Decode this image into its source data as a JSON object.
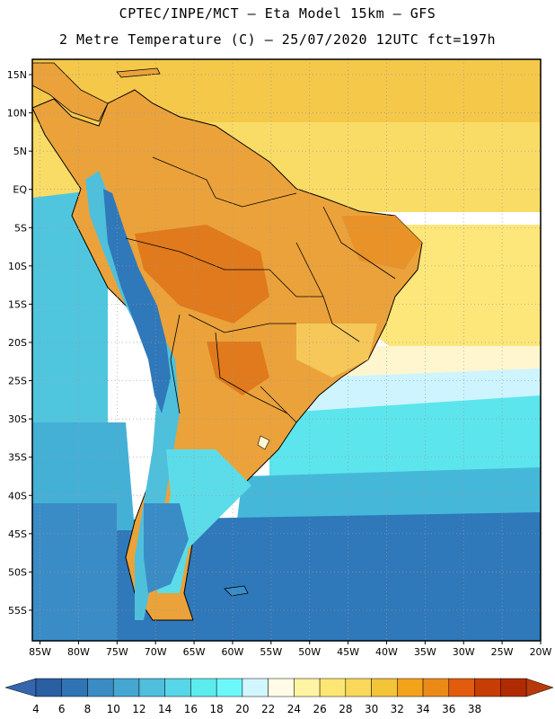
{
  "header": {
    "line1": "CPTEC/INPE/MCT –  Eta Model 15km – GFS",
    "line2": "2 Metre Temperature (C) – 25/07/2020 12UTC fct=197h"
  },
  "map": {
    "lon_range": [
      -86,
      -20
    ],
    "lat_range": [
      -59,
      17
    ],
    "lat_ticks": [
      {
        "lat": 15,
        "label": "15N"
      },
      {
        "lat": 10,
        "label": "10N"
      },
      {
        "lat": 5,
        "label": "5N"
      },
      {
        "lat": 0,
        "label": "EQ"
      },
      {
        "lat": -5,
        "label": "5S"
      },
      {
        "lat": -10,
        "label": "10S"
      },
      {
        "lat": -15,
        "label": "15S"
      },
      {
        "lat": -20,
        "label": "20S"
      },
      {
        "lat": -25,
        "label": "25S"
      },
      {
        "lat": -30,
        "label": "30S"
      },
      {
        "lat": -35,
        "label": "35S"
      },
      {
        "lat": -40,
        "label": "40S"
      },
      {
        "lat": -45,
        "label": "45S"
      },
      {
        "lat": -50,
        "label": "50S"
      },
      {
        "lat": -55,
        "label": "55S"
      }
    ],
    "lon_ticks": [
      {
        "lon": -85,
        "label": "85W"
      },
      {
        "lon": -80,
        "label": "80W"
      },
      {
        "lon": -75,
        "label": "75W"
      },
      {
        "lon": -70,
        "label": "70W"
      },
      {
        "lon": -65,
        "label": "65W"
      },
      {
        "lon": -60,
        "label": "60W"
      },
      {
        "lon": -55,
        "label": "55W"
      },
      {
        "lon": -50,
        "label": "50W"
      },
      {
        "lon": -45,
        "label": "45W"
      },
      {
        "lon": -40,
        "label": "40W"
      },
      {
        "lon": -35,
        "label": "35W"
      },
      {
        "lon": -30,
        "label": "30W"
      },
      {
        "lon": -25,
        "label": "25W"
      },
      {
        "lon": -20,
        "label": "20W"
      }
    ]
  },
  "colorbar": {
    "labels": [
      "4",
      "6",
      "8",
      "10",
      "12",
      "14",
      "16",
      "18",
      "20",
      "22",
      "24",
      "26",
      "28",
      "30",
      "32",
      "34",
      "36",
      "38"
    ],
    "colors": [
      "#2a5fa3",
      "#2f74b5",
      "#3a8cc2",
      "#45a6d2",
      "#4fbfdc",
      "#56d6e6",
      "#5cecee",
      "#6cf8f8",
      "#d2f6ff",
      "#fffbe6",
      "#fff4a3",
      "#fde774",
      "#f9d85a",
      "#f3c338",
      "#f2a31a",
      "#ec8a17",
      "#e15c0c",
      "#c63d06",
      "#b02b04"
    ],
    "under_color": "#3566ad",
    "over_color": "#b83a0a"
  }
}
